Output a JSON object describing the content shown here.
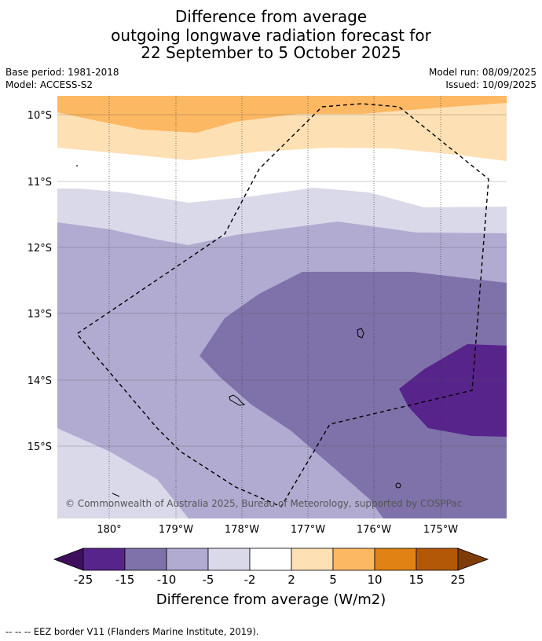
{
  "title": {
    "line1": "Difference from average",
    "line2": "outgoing longwave radiation forecast for",
    "line3": "22 September to 5 October 2025"
  },
  "meta": {
    "base_period": "Base period: 1981-2018",
    "model": "Model: ACCESS-S2",
    "model_run": "Model run: 08/09/2025",
    "issued": "Issued: 10/09/2025"
  },
  "map": {
    "lat_labels": [
      "10°S",
      "11°S",
      "12°S",
      "13°S",
      "14°S",
      "15°S"
    ],
    "lon_labels": [
      "180°",
      "179°W",
      "178°W",
      "177°W",
      "176°W",
      "175°W"
    ],
    "copyright": "© Commonwealth of Australia 2025, Bureau of Meteorology, supported by COSPPac"
  },
  "colorbar": {
    "ticks": [
      "-25",
      "-15",
      "-10",
      "-5",
      "-2",
      "2",
      "5",
      "10",
      "15",
      "25"
    ],
    "colors": [
      "#3f0f5e",
      "#57248c",
      "#7f72aa",
      "#b1abd1",
      "#d9d9ea",
      "#ffffff",
      "#fee0b5",
      "#fdb863",
      "#e08214",
      "#b35806",
      "#7f3b08"
    ],
    "label": "Difference from average (W/m2)"
  },
  "footer": "--  --  -- EEZ border V11 (Flanders Marine Institute, 2019)."
}
